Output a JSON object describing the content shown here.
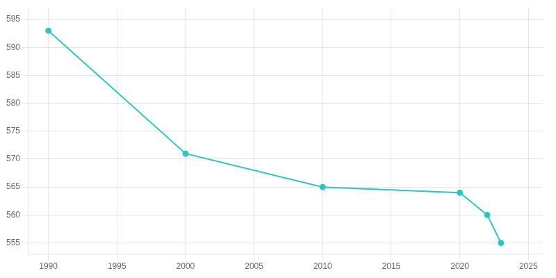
{
  "chart_data": {
    "type": "line",
    "x": [
      1990,
      2000,
      2010,
      2020,
      2022,
      2023
    ],
    "values": [
      593,
      571,
      565,
      564,
      560,
      555
    ],
    "color": "#2ec4c4",
    "marker": "circle",
    "xlim": [
      1988.5,
      2026
    ],
    "ylim": [
      553,
      597
    ],
    "xticks": [
      1990,
      1995,
      2000,
      2005,
      2010,
      2015,
      2020,
      2025
    ],
    "yticks": [
      555,
      560,
      565,
      570,
      575,
      580,
      585,
      590,
      595
    ],
    "grid": true
  }
}
